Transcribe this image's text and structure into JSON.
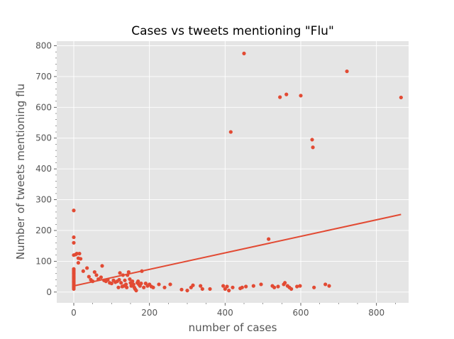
{
  "chart_data": {
    "type": "scatter",
    "title": "Cases vs tweets mentioning \"Flu\"",
    "xlabel": "number of cases",
    "ylabel": "Number of tweets mentioning flu",
    "xlim": [
      -45,
      885
    ],
    "ylim": [
      -35,
      815
    ],
    "xticks": [
      0,
      200,
      400,
      600,
      800
    ],
    "yticks": [
      0,
      100,
      200,
      300,
      400,
      500,
      600,
      700,
      800
    ],
    "grid": true,
    "colors": {
      "points": "#E24A33",
      "fit_line": "#E24A33",
      "plot_bg": "#E5E5E5",
      "grid": "#FFFFFF"
    },
    "points": [
      [
        0,
        265
      ],
      [
        0,
        178
      ],
      [
        0,
        160
      ],
      [
        0,
        120
      ],
      [
        0,
        75
      ],
      [
        0,
        70
      ],
      [
        0,
        65
      ],
      [
        0,
        60
      ],
      [
        0,
        55
      ],
      [
        0,
        50
      ],
      [
        0,
        45
      ],
      [
        0,
        40
      ],
      [
        0,
        35
      ],
      [
        0,
        30
      ],
      [
        0,
        25
      ],
      [
        0,
        20
      ],
      [
        0,
        15
      ],
      [
        0,
        10
      ],
      [
        5,
        122
      ],
      [
        8,
        125
      ],
      [
        12,
        110
      ],
      [
        12,
        95
      ],
      [
        15,
        125
      ],
      [
        18,
        108
      ],
      [
        25,
        68
      ],
      [
        35,
        78
      ],
      [
        40,
        50
      ],
      [
        45,
        40
      ],
      [
        50,
        35
      ],
      [
        55,
        65
      ],
      [
        60,
        55
      ],
      [
        65,
        42
      ],
      [
        72,
        48
      ],
      [
        75,
        85
      ],
      [
        80,
        38
      ],
      [
        85,
        35
      ],
      [
        90,
        40
      ],
      [
        95,
        30
      ],
      [
        100,
        28
      ],
      [
        105,
        38
      ],
      [
        110,
        32
      ],
      [
        115,
        35
      ],
      [
        118,
        15
      ],
      [
        120,
        40
      ],
      [
        122,
        62
      ],
      [
        125,
        30
      ],
      [
        128,
        18
      ],
      [
        130,
        55
      ],
      [
        132,
        20
      ],
      [
        135,
        38
      ],
      [
        138,
        25
      ],
      [
        140,
        15
      ],
      [
        142,
        55
      ],
      [
        145,
        65
      ],
      [
        148,
        42
      ],
      [
        150,
        30
      ],
      [
        152,
        20
      ],
      [
        155,
        35
      ],
      [
        158,
        25
      ],
      [
        160,
        15
      ],
      [
        162,
        10
      ],
      [
        165,
        5
      ],
      [
        168,
        30
      ],
      [
        170,
        35
      ],
      [
        172,
        25
      ],
      [
        175,
        20
      ],
      [
        178,
        28
      ],
      [
        180,
        68
      ],
      [
        185,
        15
      ],
      [
        190,
        28
      ],
      [
        195,
        20
      ],
      [
        200,
        25
      ],
      [
        205,
        18
      ],
      [
        210,
        15
      ],
      [
        225,
        25
      ],
      [
        240,
        15
      ],
      [
        255,
        25
      ],
      [
        285,
        8
      ],
      [
        300,
        5
      ],
      [
        310,
        15
      ],
      [
        315,
        22
      ],
      [
        335,
        20
      ],
      [
        340,
        10
      ],
      [
        360,
        10
      ],
      [
        395,
        20
      ],
      [
        400,
        10
      ],
      [
        405,
        18
      ],
      [
        410,
        5
      ],
      [
        415,
        520
      ],
      [
        420,
        15
      ],
      [
        440,
        12
      ],
      [
        445,
        15
      ],
      [
        450,
        775
      ],
      [
        455,
        18
      ],
      [
        475,
        20
      ],
      [
        495,
        25
      ],
      [
        515,
        172
      ],
      [
        525,
        20
      ],
      [
        530,
        15
      ],
      [
        540,
        18
      ],
      [
        545,
        633
      ],
      [
        555,
        25
      ],
      [
        558,
        30
      ],
      [
        562,
        642
      ],
      [
        565,
        20
      ],
      [
        570,
        15
      ],
      [
        575,
        10
      ],
      [
        590,
        18
      ],
      [
        598,
        20
      ],
      [
        600,
        638
      ],
      [
        630,
        495
      ],
      [
        632,
        470
      ],
      [
        635,
        15
      ],
      [
        665,
        25
      ],
      [
        675,
        20
      ],
      [
        722,
        717
      ],
      [
        865,
        632
      ]
    ],
    "fit_line": {
      "x": [
        0,
        865
      ],
      "y": [
        20,
        252
      ]
    }
  }
}
